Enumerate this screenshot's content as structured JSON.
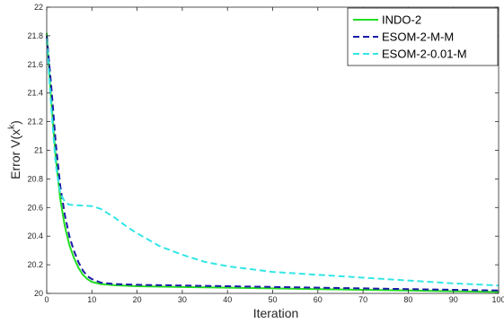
{
  "chart_data": {
    "type": "line",
    "xlabel": "Iteration",
    "ylabel": "Error V(x",
    "ylabel_sup": "k",
    "ylabel_close": ")",
    "xlim": [
      0,
      100
    ],
    "ylim": [
      20,
      22
    ],
    "xticks": [
      0,
      10,
      20,
      30,
      40,
      50,
      60,
      70,
      80,
      90,
      100
    ],
    "yticks": [
      20,
      20.2,
      20.4,
      20.6,
      20.8,
      21,
      21.2,
      21.4,
      21.6,
      21.8,
      22
    ],
    "ytick_labels": [
      "20",
      "20.2",
      "20.4",
      "20.6",
      "20.8",
      "21",
      "21.2",
      "21.4",
      "21.6",
      "21.8",
      "22"
    ],
    "grid": false,
    "legend_position": "top-right",
    "series": [
      {
        "name": "INDO-2",
        "color": "#22dd22",
        "style": "solid",
        "x": [
          0,
          1,
          2,
          3,
          4,
          5,
          6,
          7,
          8,
          9,
          10,
          12,
          15,
          20,
          30,
          40,
          50,
          60,
          70,
          80,
          90,
          100
        ],
        "y": [
          21.82,
          21.35,
          20.95,
          20.66,
          20.47,
          20.34,
          20.25,
          20.18,
          20.13,
          20.1,
          20.08,
          20.065,
          20.057,
          20.05,
          20.045,
          20.04,
          20.035,
          20.03,
          20.025,
          20.02,
          20.015,
          20.01
        ]
      },
      {
        "name": "ESOM-2-M-M",
        "color": "#1a1aa6",
        "style": "dashed",
        "x": [
          0,
          1,
          2,
          3,
          4,
          5,
          6,
          7,
          8,
          9,
          10,
          12,
          15,
          20,
          30,
          40,
          50,
          60,
          70,
          80,
          90,
          100
        ],
        "y": [
          21.8,
          21.45,
          21.05,
          20.75,
          20.55,
          20.4,
          20.3,
          20.22,
          20.16,
          20.12,
          20.1,
          20.075,
          20.065,
          20.06,
          20.055,
          20.05,
          20.045,
          20.04,
          20.035,
          20.03,
          20.025,
          20.02
        ]
      },
      {
        "name": "ESOM-2-0.01-M",
        "color": "#33e6e6",
        "style": "dashed",
        "x": [
          0,
          1,
          2,
          3,
          4,
          5,
          7,
          10,
          12,
          15,
          18,
          20,
          25,
          30,
          35,
          40,
          50,
          60,
          70,
          80,
          90,
          100
        ],
        "y": [
          21.78,
          21.3,
          20.9,
          20.7,
          20.64,
          20.62,
          20.615,
          20.61,
          20.59,
          20.53,
          20.46,
          20.42,
          20.33,
          20.27,
          20.22,
          20.19,
          20.15,
          20.13,
          20.11,
          20.09,
          20.07,
          20.055
        ]
      }
    ]
  }
}
